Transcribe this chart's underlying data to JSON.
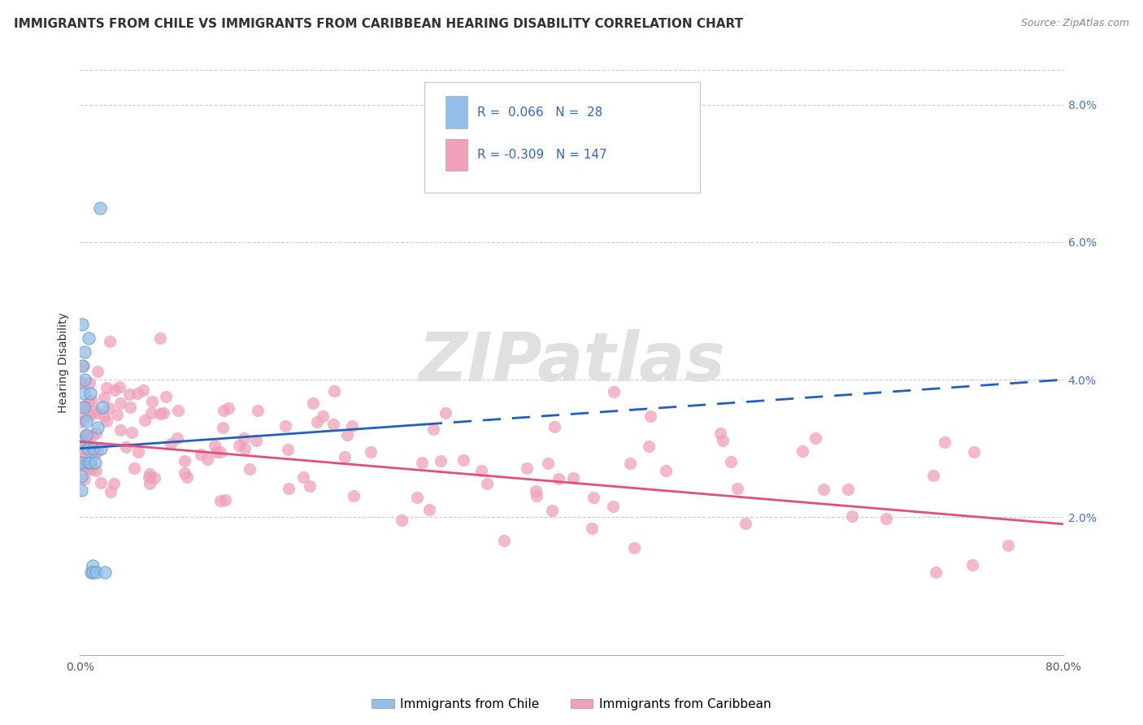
{
  "title": "IMMIGRANTS FROM CHILE VS IMMIGRANTS FROM CARIBBEAN HEARING DISABILITY CORRELATION CHART",
  "source": "Source: ZipAtlas.com",
  "ylabel_label": "Hearing Disability",
  "xlabel_label": "Immigrants from Chile",
  "xlabel2_label": "Immigrants from Caribbean",
  "x_min": 0.0,
  "x_max": 0.8,
  "y_min": 0.0,
  "y_max": 0.085,
  "r_chile": 0.066,
  "n_chile": 28,
  "r_caribbean": -0.309,
  "n_caribbean": 147,
  "color_chile": "#92BEE8",
  "color_caribbean": "#F0A0B8",
  "line_color_chile": "#2060C0",
  "line_color_caribbean": "#E0507A",
  "chile_line_start_y": 0.03,
  "chile_line_end_y": 0.04,
  "carib_line_start_y": 0.031,
  "carib_line_end_y": 0.019,
  "chile_line_dash_start": 0.28,
  "title_fontsize": 11,
  "tick_fontsize": 10,
  "legend_fontsize": 11,
  "axis_label_fontsize": 10,
  "watermark_text": "ZIPatlas",
  "y_tick_positions": [
    0.02,
    0.04,
    0.06,
    0.08
  ],
  "y_tick_labels": [
    "2.0%",
    "4.0%",
    "6.0%",
    "8.0%"
  ]
}
